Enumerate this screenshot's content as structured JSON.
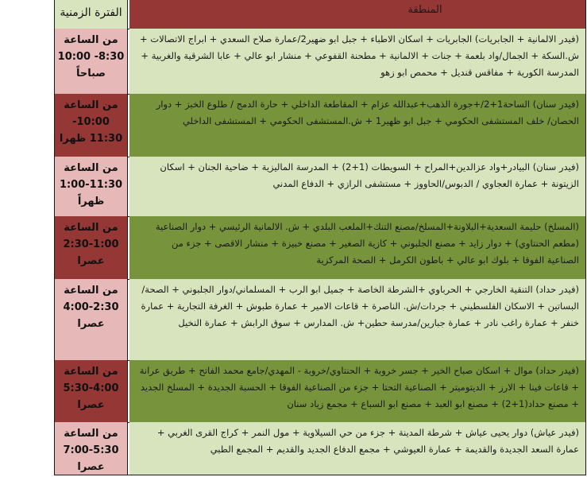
{
  "header": {
    "time_period": "الفترة الزمنية",
    "region": "المنطقة"
  },
  "colors": {
    "light_green": "#d7e4bd",
    "dark_green": "#77933c",
    "pink": "#e6b9b8",
    "dark_red": "#953735"
  },
  "rows": [
    {
      "time": [
        "من الساعة",
        "10:00 -8:30",
        "صباحاً"
      ],
      "region": "(فيدر الالمانية + الجابريات) الجابريات + اسكان الاطباء + جبل ابو ضهير2/عمارة صلاح السعدي + ابراج الاتصالات + ش.السكة + الجمال/واد بلعمة + جنات + الالمانية + مطحنة القفوعي + منشار ابو عالي + عابا الشرقية والغربية + المدرسة الكورية + مفاقس قنديل + محمص ابو زهو"
    },
    {
      "time": [
        "من الساعة",
        "-10:00",
        "11:30 ظهرا"
      ],
      "region": "(فيدر سنان) الساحة1+2/+جورة الذهب+عبدالله عزام + المقاطعة الداخلي + حارة الدمج / طلوع الخبز + دوار الحصان/ خلف المستشفى الحكومي + جبل ابو ظهير1 + ش.المستشفى الحكومي + المستشفى الداخلي"
    },
    {
      "time": [
        "من الساعة",
        "1:00-11:30",
        "ظهراً"
      ],
      "region": "(فيدر سنان) البيادر+واد عزالدين+المراح + السويطات (1+2) + المدرسة الماليزية + ضاحية الجنان + اسكان الزيتونة + عمارة العجاوي / الدبوس/الحاووز + مستشفى الرازي + الدفاع المدني"
    },
    {
      "time": [
        "من الساعة",
        "2:30-1:00",
        "عصرا"
      ],
      "region": "(المسلخ) حليمة السعدية+البلاونة+المسلخ/مصنع التنك+الملعب البلدي + ش. الالمانية الرئيسي + دوار الصناعية (مطعم الحنتاوي) + دوار زايد + مصنع الجلبوني + كازية الصغير + مصنع خبيزة + منشار الاقصى + جزء من الصناعية الفوقا + بلوك ابو عالي + باطون الكرمل + الصحة المركزية"
    },
    {
      "time": [
        "من الساعة",
        "4:00-2:30",
        "عصرا"
      ],
      "region": "(فيدر حداد) التنقية الخارجي + الحرباوي +الشرطة الخاصة + جميل ابو الرب + المسلماني/دوار الجلبوني + الصحة/البساتين + الاسكان الفلسطيني + جردات/ش. الناصرة + قاعات الامير + عمارة طبوش + الغرفة التجارية + عمارة خنفر + عمارة راغب نادر + عمارة جبارين/مدرسة حطين+ ش. المدارس + سوق الرابش + عمارة النخيل"
    },
    {
      "time": [
        "من الساعة",
        "5:30-4:00",
        "عصرا"
      ],
      "region": "(فيدر حداد) موال + اسكان صباح الخير + جسر خروبة + الحنتاوي/خروبة - المهدي/جامع محمد الفاتح + طريق عرانة + قاعات فينا + الارز + الديتوميتر + الصناعية التحتا + جزء من الصناعية الفوقا + الحسبة الجديدة + المسلخ الجديد + مصنع حداد(1+2) + مصنع ابو العبد + مصنع ابو السباع + مجمع زياد سنان"
    },
    {
      "time": [
        "من الساعة",
        "7:00-5:30",
        "عصرا"
      ],
      "region": "(فيدر عياش) دوار يحيى عياش + شرطة المدينة + جزء من حي السيلاوية + مول النمر + كراج القرى الغربي + عمارة السعد الجديدة والقديمة + عمارة العيوشي + مجمع الدفاع الجديد والقديم + المجمع الطبي"
    }
  ]
}
